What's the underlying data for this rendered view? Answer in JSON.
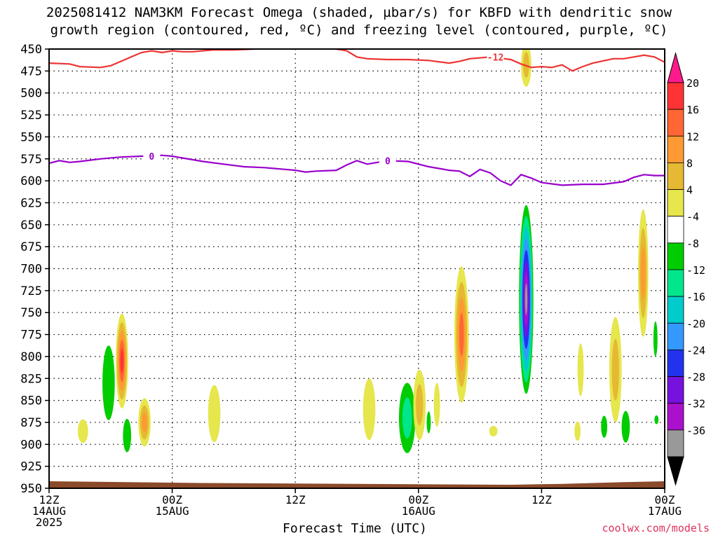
{
  "title_line1": "2025081412 NAM3KM Forecast Omega (shaded, µbar/s) for KBFD with dendritic snow",
  "title_line2": "growth region (contoured, red, ºC) and freezing level (contoured, purple, ºC)",
  "credit": "coolwx.com/models",
  "chart_data": {
    "type": "heatmap",
    "xlabel": "Forecast Time (UTC)",
    "ylabel": "",
    "x_range_hours": [
      0,
      60
    ],
    "ylim": [
      950,
      450
    ],
    "y_ticks": [
      450,
      475,
      500,
      525,
      550,
      575,
      600,
      625,
      650,
      675,
      700,
      725,
      750,
      775,
      800,
      825,
      850,
      875,
      900,
      925,
      950
    ],
    "x_ticks": [
      {
        "hour": 0,
        "label": "12Z",
        "sub1": "14AUG",
        "sub2": "2025"
      },
      {
        "hour": 12,
        "label": "00Z",
        "sub1": "15AUG",
        "sub2": ""
      },
      {
        "hour": 24,
        "label": "12Z",
        "sub1": "",
        "sub2": ""
      },
      {
        "hour": 36,
        "label": "00Z",
        "sub1": "16AUG",
        "sub2": ""
      },
      {
        "hour": 48,
        "label": "12Z",
        "sub1": "",
        "sub2": ""
      },
      {
        "hour": 60,
        "label": "00Z",
        "sub1": "17AUG",
        "sub2": ""
      }
    ],
    "grid": true,
    "colorbar": {
      "labels": [
        "20",
        "16",
        "12",
        "8",
        "4",
        "-4",
        "-8",
        "-12",
        "-16",
        "-20",
        "-24",
        "-28",
        "-32",
        "-36"
      ],
      "colors": [
        "#ff1a8c",
        "#ff3333",
        "#ff6633",
        "#ff9933",
        "#e6b833",
        "#e6e64d",
        "#ffffff",
        "#00cc00",
        "#00e68c",
        "#00cccc",
        "#3399ff",
        "#2233ee",
        "#7711dd",
        "#aa11cc",
        "#999999",
        "#000000"
      ]
    },
    "freezing_level": {
      "color": "#9900cc",
      "label": "0",
      "points": [
        [
          0,
          580
        ],
        [
          1,
          577
        ],
        [
          2,
          579
        ],
        [
          3,
          578
        ],
        [
          5,
          575
        ],
        [
          7,
          573
        ],
        [
          9,
          572
        ],
        [
          11,
          571
        ],
        [
          12,
          572
        ],
        [
          13,
          574
        ],
        [
          15,
          578
        ],
        [
          17,
          581
        ],
        [
          19,
          584
        ],
        [
          21,
          585
        ],
        [
          23,
          587
        ],
        [
          24,
          588
        ],
        [
          25,
          590
        ],
        [
          26,
          589
        ],
        [
          28,
          588
        ],
        [
          29,
          582
        ],
        [
          30,
          577
        ],
        [
          31,
          581
        ],
        [
          32,
          579
        ],
        [
          33,
          577
        ],
        [
          35,
          578
        ],
        [
          36,
          581
        ],
        [
          37,
          584
        ],
        [
          38,
          586
        ],
        [
          39,
          588
        ],
        [
          40,
          589
        ],
        [
          41,
          595
        ],
        [
          42,
          587
        ],
        [
          43,
          591
        ],
        [
          44,
          600
        ],
        [
          45,
          605
        ],
        [
          46,
          593
        ],
        [
          47,
          597
        ],
        [
          48,
          602
        ],
        [
          50,
          605
        ],
        [
          52,
          604
        ],
        [
          54,
          604
        ],
        [
          56,
          601
        ],
        [
          57,
          596
        ],
        [
          58,
          593
        ],
        [
          59,
          594
        ],
        [
          60,
          594
        ]
      ]
    },
    "dgz_top": {
      "color": "#ee3333",
      "label": "-12",
      "points": [
        [
          0,
          466
        ],
        [
          2,
          467
        ],
        [
          3,
          470
        ],
        [
          5,
          471
        ],
        [
          6,
          469
        ],
        [
          7,
          464
        ],
        [
          8,
          459
        ],
        [
          9,
          454
        ],
        [
          10,
          452
        ],
        [
          11,
          454
        ],
        [
          12,
          452
        ],
        [
          13,
          453
        ],
        [
          14,
          453
        ],
        [
          15,
          452
        ],
        [
          16,
          451
        ],
        [
          18,
          451
        ],
        [
          20,
          450
        ],
        [
          22,
          449
        ],
        [
          24,
          449
        ],
        [
          26,
          449
        ],
        [
          28,
          450
        ],
        [
          29,
          452
        ],
        [
          30,
          459
        ],
        [
          31,
          461
        ],
        [
          33,
          462
        ],
        [
          35,
          462
        ],
        [
          37,
          463
        ],
        [
          39,
          466
        ],
        [
          40,
          464
        ],
        [
          41,
          461
        ],
        [
          43,
          459
        ],
        [
          45,
          462
        ],
        [
          46,
          467
        ],
        [
          47,
          471
        ],
        [
          48,
          470
        ],
        [
          49,
          471
        ],
        [
          50,
          468
        ],
        [
          51,
          475
        ],
        [
          52,
          470
        ],
        [
          53,
          466
        ],
        [
          55,
          461
        ],
        [
          56,
          461
        ],
        [
          58,
          457
        ],
        [
          59,
          459
        ],
        [
          60,
          465
        ]
      ]
    },
    "omega_features": [
      {
        "t": 3.3,
        "p": 885,
        "w": 0.5,
        "h": 27,
        "v": 4
      },
      {
        "t": 5.8,
        "p": 830,
        "w": 0.6,
        "h": 85,
        "v": -8
      },
      {
        "t": 7.1,
        "p": 805,
        "w": 0.6,
        "h": 108,
        "v": 20
      },
      {
        "t": 7.6,
        "p": 890,
        "w": 0.4,
        "h": 38,
        "v": -6
      },
      {
        "t": 9.3,
        "p": 875,
        "w": 0.6,
        "h": 55,
        "v": 12
      },
      {
        "t": 16.1,
        "p": 865,
        "w": 0.6,
        "h": 65,
        "v": 4
      },
      {
        "t": 31.2,
        "p": 860,
        "w": 0.6,
        "h": 70,
        "v": 4
      },
      {
        "t": 34.9,
        "p": 870,
        "w": 0.8,
        "h": 80,
        "v": -12
      },
      {
        "t": 36.1,
        "p": 855,
        "w": 0.6,
        "h": 80,
        "v": 6
      },
      {
        "t": 37.0,
        "p": 875,
        "w": 0.2,
        "h": 25,
        "v": -5
      },
      {
        "t": 37.8,
        "p": 855,
        "w": 0.3,
        "h": 50,
        "v": 4
      },
      {
        "t": 40.2,
        "p": 775,
        "w": 0.7,
        "h": 155,
        "v": 16
      },
      {
        "t": 43.3,
        "p": 885,
        "w": 0.4,
        "h": 12,
        "v": 4
      },
      {
        "t": 46.5,
        "p": 735,
        "w": 0.7,
        "h": 215,
        "v": -36
      },
      {
        "t": 46.5,
        "p": 468,
        "w": 0.5,
        "h": 50,
        "v": 6
      },
      {
        "t": 51.8,
        "p": 815,
        "w": 0.3,
        "h": 60,
        "v": 4
      },
      {
        "t": 51.5,
        "p": 885,
        "w": 0.3,
        "h": 22,
        "v": 4
      },
      {
        "t": 54.1,
        "p": 880,
        "w": 0.3,
        "h": 25,
        "v": -8
      },
      {
        "t": 55.2,
        "p": 815,
        "w": 0.6,
        "h": 120,
        "v": 6
      },
      {
        "t": 56.2,
        "p": 880,
        "w": 0.4,
        "h": 36,
        "v": -8
      },
      {
        "t": 57.9,
        "p": 705,
        "w": 0.5,
        "h": 145,
        "v": 12
      },
      {
        "t": 59.1,
        "p": 780,
        "w": 0.2,
        "h": 40,
        "v": -6
      },
      {
        "t": 59.2,
        "p": 872,
        "w": 0.2,
        "h": 10,
        "v": -6
      }
    ],
    "terrain_color": "#8b4a2a"
  }
}
